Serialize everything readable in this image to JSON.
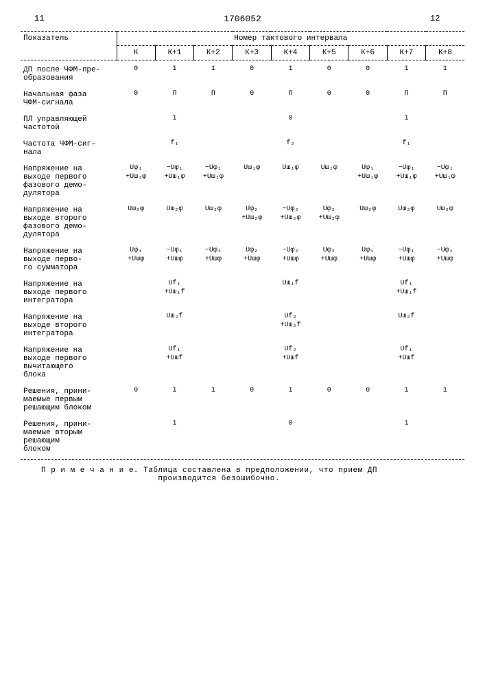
{
  "header": {
    "page_left": "11",
    "doc_number": "1706052",
    "page_right": "12"
  },
  "table": {
    "indicator_label": "Показатель",
    "interval_header": "Номер тактового интервала",
    "columns": [
      "К",
      "К+1",
      "К+2",
      "К+3",
      "К+4",
      "К+5",
      "К+6",
      "К+7",
      "К+8"
    ],
    "rows": [
      {
        "label": "ДП после ЧФМ-пре-\nобразования",
        "cells": [
          "0",
          "1",
          "1",
          "0",
          "1",
          "0",
          "0",
          "1",
          "1"
        ]
      },
      {
        "label": "Начальная фаза\nЧФМ-сигнала",
        "cells": [
          "0",
          "П",
          "П",
          "0",
          "П",
          "0",
          "0",
          "П",
          "П"
        ]
      },
      {
        "label": "ПЛ управляющей\nчастотой",
        "cells": [
          "",
          "1",
          "",
          "",
          "0",
          "",
          "",
          "1",
          ""
        ],
        "span": 3
      },
      {
        "label": "Частота ЧФМ-сиг-\nнала",
        "cells": [
          "",
          "f₁",
          "",
          "",
          "f₂",
          "",
          "",
          "f₁",
          ""
        ],
        "span": 3
      },
      {
        "label": "Напряжение на\nвыходе первого\nфазового демо-\nдулятора",
        "cells": [
          "Uφ₁\n+Uш₁φ",
          "−Uφ₁\n+Uш₁φ",
          "−Uφ₁\n+Uш₁φ",
          "Uш₁φ",
          "Uш₁φ",
          "Uш₁φ",
          "Uφ₁\n+Uш₁φ",
          "−Uφ₁\n+Uш₁φ",
          "−Uφ₁\n+Uш₁φ"
        ]
      },
      {
        "label": "Напряжение на\nвыходе второго\nфазового демо-\nдулятора",
        "cells": [
          "Uш₂φ",
          "Uш₂φ",
          "Uш₂φ",
          "Uφ₂\n+Uш₂φ",
          "−Uφ₂\n+Uш₂φ",
          "Uφ₂\n+Uш₂φ",
          "Uш₂φ",
          "Uш₂φ",
          "Uш₂φ"
        ]
      },
      {
        "label": "Напряжение на\nвыходе перво-\nго сумматора",
        "cells": [
          "Uφ₁\n+Uшφ",
          "−Uφ₁\n+Uшφ",
          "−Uφ₁\n+Uшφ",
          "Uφ₂\n+Uшφ",
          "−Uφ₂\n+Uшφ",
          "Uφ₂\n+Uшφ",
          "Uφ₁\n+Uшφ",
          "−Uφ₁\n+Uшφ",
          "−Uφ₁\n+Uшφ"
        ]
      },
      {
        "label": "Напряжение на\nвыходе первого\nинтегратора",
        "cells": [
          "",
          "Uf₁\n+Uш₁f",
          "",
          "",
          "Uш₁f",
          "",
          "",
          "Uf₁\n+Uш₁f",
          ""
        ],
        "span": 3
      },
      {
        "label": "Напряжение на\nвыходе второго\nинтегратора",
        "cells": [
          "",
          "Uш₂f",
          "",
          "",
          "Uf₂\n+Uш₂f",
          "",
          "",
          "Uш₂f",
          ""
        ],
        "span": 3
      },
      {
        "label": "Напряжение на\nвыходе первого\nвычитающего\nблока",
        "cells": [
          "",
          "Uf₁\n+Uшf",
          "",
          "",
          "Uf₂\n+Uшf",
          "",
          "",
          "Uf₁\n+Uшf",
          ""
        ],
        "span": 3
      },
      {
        "label": "Решения, прини-\nмаемые первым\nрешающим блоком",
        "cells": [
          "0",
          "1",
          "1",
          "0",
          "1",
          "0",
          "0",
          "1",
          "1"
        ]
      },
      {
        "label": "Решения, прини-\nмаемые вторым\nрешающим\nблоком",
        "cells": [
          "",
          "1",
          "",
          "",
          "0",
          "",
          "",
          "1",
          ""
        ],
        "span": 3
      }
    ]
  },
  "note": {
    "label": "П р и м е ч а н и е.",
    "text": "Таблица составлена в предположении, что прием ДП\nпроизводится безошибочно."
  },
  "style": {
    "background_color": "#ffffff",
    "text_color": "#000000",
    "font_family": "Courier New",
    "base_fontsize": 12,
    "cell_fontsize": 11,
    "formula_fontsize": 10,
    "border_color": "#000000"
  }
}
